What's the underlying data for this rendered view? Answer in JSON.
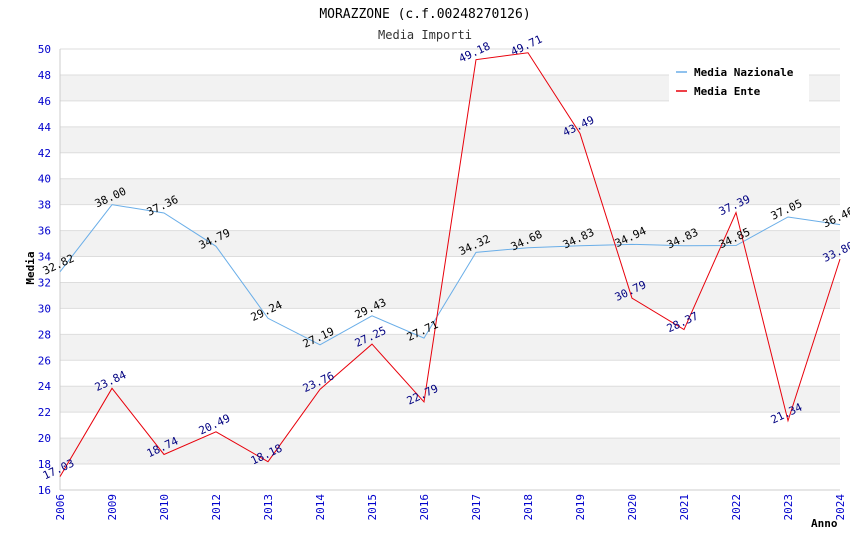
{
  "chart_data": {
    "type": "line",
    "title": "MORAZZONE (c.f.00248270126)",
    "subtitle": "Media Importi",
    "xlabel": "Anno",
    "ylabel": "Media",
    "ylim": [
      16,
      50
    ],
    "ytick_step": 2,
    "grid": "horizontal bands",
    "legend_position": "top-right",
    "categories": [
      "2006",
      "2009",
      "2010",
      "2012",
      "2013",
      "2014",
      "2015",
      "2016",
      "2017",
      "2018",
      "2019",
      "2020",
      "2021",
      "2022",
      "2023",
      "2024"
    ],
    "series": [
      {
        "name": "Media Nazionale",
        "color": "#6aaee8",
        "values": [
          32.82,
          38.0,
          37.36,
          34.79,
          29.24,
          27.19,
          29.43,
          27.71,
          34.32,
          34.68,
          34.83,
          34.94,
          34.83,
          34.85,
          37.05,
          36.46
        ],
        "labels": [
          "32.82",
          "38.00",
          "37.36",
          "34.79",
          "29.24",
          "27.19",
          "29.43",
          "27.71",
          "34.32",
          "34.68",
          "34.83",
          "34.94",
          "34.83",
          "34.85",
          "37.05",
          "36.46"
        ]
      },
      {
        "name": "Media Ente",
        "color": "#e8000b",
        "values": [
          17.03,
          23.84,
          18.74,
          20.49,
          18.18,
          23.76,
          27.25,
          22.79,
          49.18,
          49.71,
          43.49,
          30.79,
          28.37,
          37.39,
          21.34,
          33.8
        ],
        "labels": [
          "17.03",
          "23.84",
          "18.74",
          "20.49",
          "18.18",
          "23.76",
          "27.25",
          "22.79",
          "49.18",
          "49.71",
          "43.49",
          "30.79",
          "28.37",
          "37.39",
          "21.34",
          "33.80"
        ]
      }
    ]
  }
}
